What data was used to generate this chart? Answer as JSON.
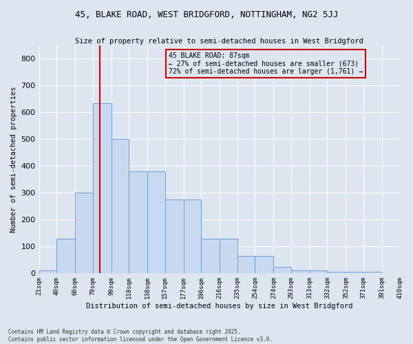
{
  "title_line1": "45, BLAKE ROAD, WEST BRIDGFORD, NOTTINGHAM, NG2 5JJ",
  "title_line2": "Size of property relative to semi-detached houses in West Bridgford",
  "xlabel": "Distribution of semi-detached houses by size in West Bridgford",
  "ylabel": "Number of semi-detached properties",
  "annotation_title": "45 BLAKE ROAD: 87sqm",
  "annotation_line2": "← 27% of semi-detached houses are smaller (673)",
  "annotation_line3": "72% of semi-detached houses are larger (1,761) →",
  "footer_line1": "Contains HM Land Registry data © Crown copyright and database right 2025.",
  "footer_line2": "Contains public sector information licensed under the Open Government Licence v3.0.",
  "bar_color": "#c8d8ef",
  "bar_edge_color": "#6a9fd8",
  "vline_color": "#cc0000",
  "vline_x": 87,
  "background_color": "#dde6f0",
  "bins": [
    21,
    40,
    60,
    79,
    99,
    118,
    138,
    157,
    177,
    196,
    216,
    235,
    254,
    274,
    293,
    313,
    332,
    352,
    371,
    391,
    410
  ],
  "bin_labels": [
    "21sqm",
    "40sqm",
    "60sqm",
    "79sqm",
    "99sqm",
    "118sqm",
    "138sqm",
    "157sqm",
    "177sqm",
    "196sqm",
    "216sqm",
    "235sqm",
    "254sqm",
    "274sqm",
    "293sqm",
    "313sqm",
    "332sqm",
    "352sqm",
    "371sqm",
    "391sqm",
    "410sqm"
  ],
  "values": [
    10,
    130,
    300,
    635,
    500,
    380,
    380,
    275,
    275,
    130,
    130,
    65,
    65,
    25,
    10,
    10,
    5,
    5,
    5,
    0,
    0
  ],
  "ylim": [
    0,
    850
  ],
  "yticks": [
    0,
    100,
    200,
    300,
    400,
    500,
    600,
    700,
    800
  ]
}
